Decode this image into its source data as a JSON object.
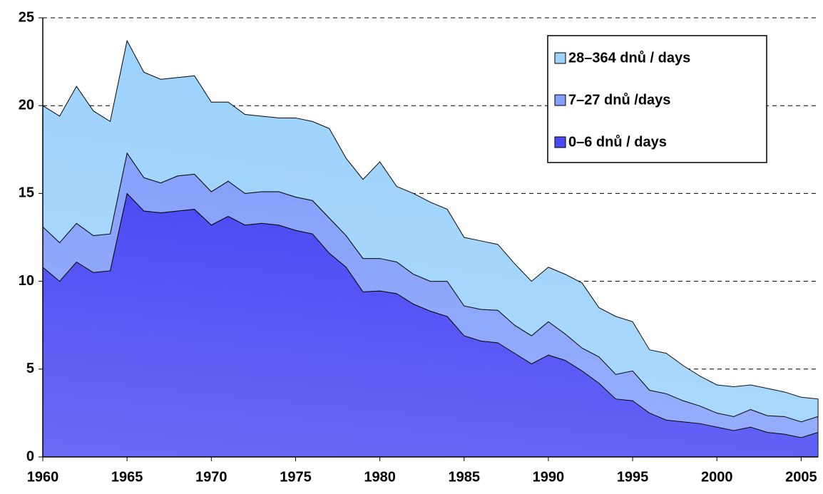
{
  "chart_data": {
    "type": "stacked-area",
    "x": [
      1960,
      1961,
      1962,
      1963,
      1964,
      1965,
      1966,
      1967,
      1968,
      1969,
      1970,
      1971,
      1972,
      1973,
      1974,
      1975,
      1976,
      1977,
      1978,
      1979,
      1980,
      1981,
      1982,
      1983,
      1984,
      1985,
      1986,
      1987,
      1988,
      1989,
      1990,
      1991,
      1992,
      1993,
      1994,
      1995,
      1996,
      1997,
      1998,
      1999,
      2000,
      2001,
      2002,
      2003,
      2004,
      2005,
      2006
    ],
    "series": [
      {
        "name": "0–6 dnů / days",
        "color": "#4a4af5",
        "values": [
          10.8,
          10.0,
          11.1,
          10.5,
          10.6,
          15.0,
          14.0,
          13.9,
          14.0,
          14.1,
          13.2,
          13.7,
          13.2,
          13.3,
          13.2,
          12.9,
          12.7,
          11.6,
          10.8,
          9.4,
          9.45,
          9.3,
          8.7,
          8.3,
          8.0,
          6.9,
          6.6,
          6.5,
          5.9,
          5.3,
          5.8,
          5.5,
          4.9,
          4.2,
          3.3,
          3.2,
          2.5,
          2.1,
          2.0,
          1.9,
          1.7,
          1.5,
          1.7,
          1.4,
          1.3,
          1.1,
          1.4
        ]
      },
      {
        "name": "7–27 dnů /days",
        "color": "#85a0fb",
        "values": [
          2.3,
          2.2,
          2.2,
          2.1,
          2.1,
          2.3,
          1.9,
          1.7,
          2.0,
          2.0,
          1.9,
          2.0,
          1.8,
          1.8,
          1.9,
          1.9,
          1.9,
          2.0,
          1.8,
          1.9,
          1.85,
          1.8,
          1.7,
          1.7,
          2.0,
          1.7,
          1.8,
          1.85,
          1.6,
          1.6,
          1.9,
          1.5,
          1.3,
          1.5,
          1.4,
          1.7,
          1.3,
          1.5,
          1.2,
          1.0,
          0.8,
          0.8,
          1.0,
          0.95,
          1.0,
          0.9,
          0.9
        ]
      },
      {
        "name": "28–364 dnů / days",
        "color": "#9cd2fd",
        "values": [
          6.9,
          7.2,
          7.8,
          7.1,
          6.4,
          6.4,
          6.0,
          5.9,
          5.6,
          5.6,
          5.1,
          4.5,
          4.5,
          4.3,
          4.2,
          4.5,
          4.5,
          5.1,
          4.4,
          4.5,
          5.5,
          4.3,
          4.6,
          4.5,
          4.1,
          3.9,
          3.9,
          3.75,
          3.5,
          3.1,
          3.1,
          3.4,
          3.7,
          2.8,
          3.3,
          2.8,
          2.3,
          2.3,
          2.0,
          1.7,
          1.6,
          1.7,
          1.4,
          1.55,
          1.4,
          1.4,
          1.0
        ]
      }
    ],
    "xlim": [
      1960,
      2006
    ],
    "xticks": [
      1960,
      1965,
      1970,
      1975,
      1980,
      1985,
      1990,
      1995,
      2000,
      2005
    ],
    "ylim": [
      0,
      25
    ],
    "yticks": [
      0,
      5,
      10,
      15,
      20,
      25
    ],
    "grid": true,
    "legend": "top-right"
  }
}
